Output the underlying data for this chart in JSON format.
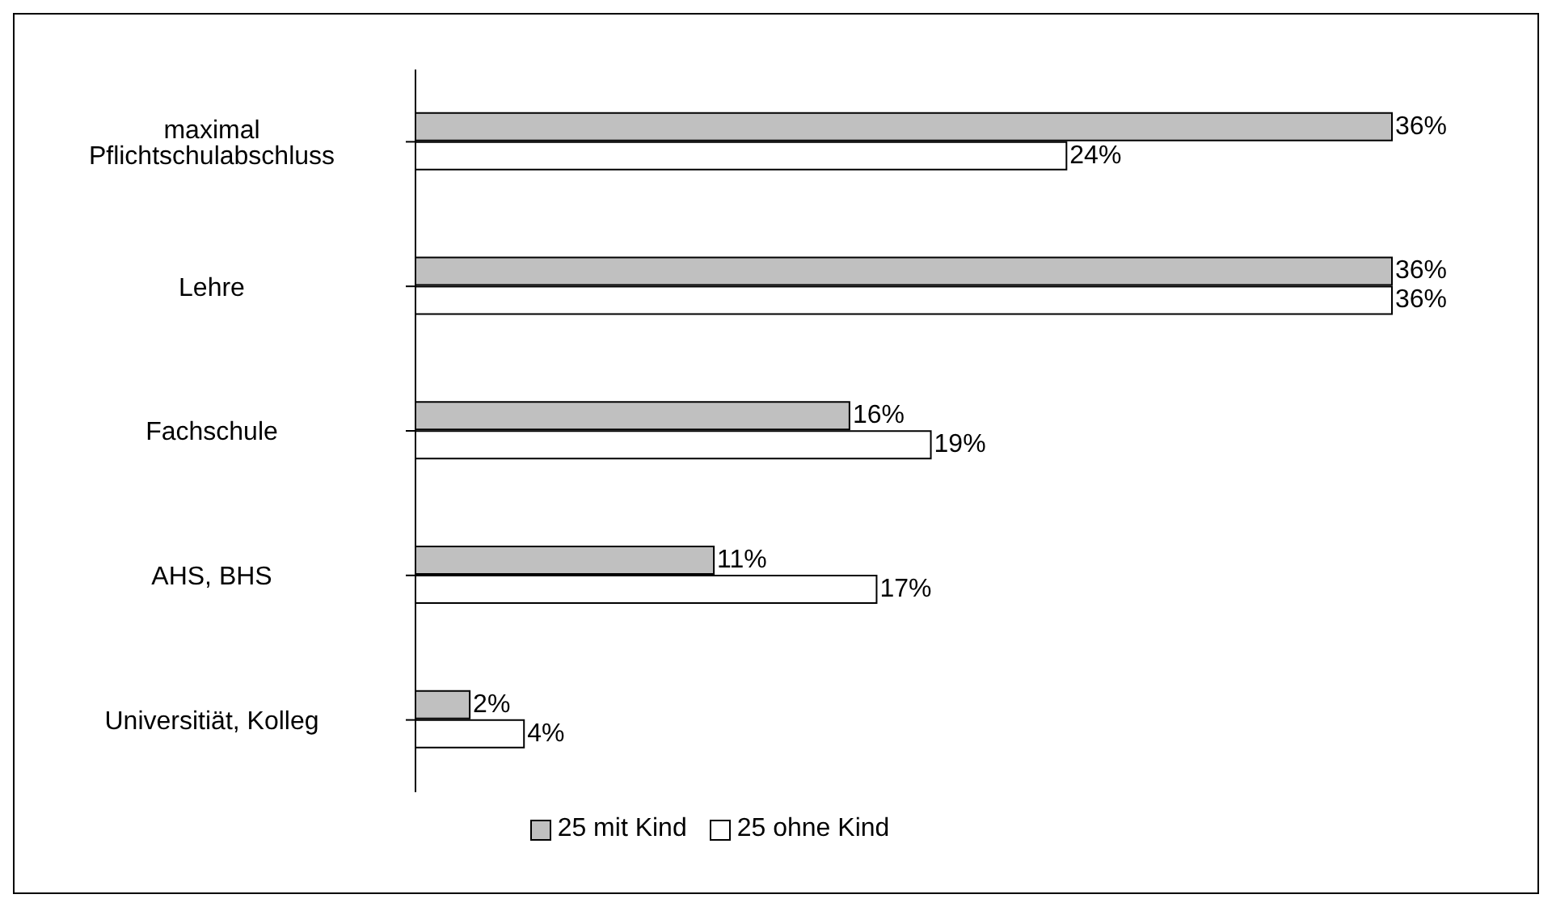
{
  "chart_data": {
    "type": "bar",
    "orientation": "horizontal",
    "categories": [
      "maximal Pflichtschulabschluss",
      "Lehre",
      "Fachschule",
      "AHS, BHS",
      "Universitiät, Kolleg"
    ],
    "series": [
      {
        "name": "25 mit Kind",
        "color": "#c0c0c0",
        "values": [
          36,
          36,
          16,
          11,
          2
        ],
        "value_labels": [
          "36%",
          "36%",
          "16%",
          "11%",
          "2%"
        ]
      },
      {
        "name": "25 ohne Kind",
        "color": "#ffffff",
        "values": [
          24,
          36,
          19,
          17,
          4
        ],
        "value_labels": [
          "24%",
          "36%",
          "19%",
          "17%",
          "4%"
        ]
      }
    ],
    "legend": "bottom",
    "grid": false
  }
}
